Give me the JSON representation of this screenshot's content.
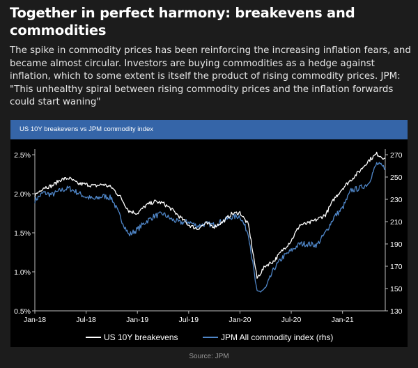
{
  "headline": "Together in perfect harmony: breakevens and commodities",
  "intro": "The spike in commodity prices has been reinforcing the increasing inflation fears, and became almost circular. Investors are buying commodities as a hedge against inflation, which to some extent is itself the product of rising commodity prices. JPM: \"This unhealthy spiral between rising commodity prices and the inflation forwards could start waning\"",
  "source": "Source: JPM",
  "colors": {
    "background": "#1c1c1c",
    "plot_background": "#000000",
    "header_bar": "#3565a8",
    "breakevens_line": "#ffffff",
    "commodity_line": "#4f86c8"
  },
  "chart_data": {
    "type": "line",
    "title": "US 10Y breakevens vs JPM commodity index",
    "x_ticks": [
      "Jan-18",
      "Jul-18",
      "Jan-19",
      "Jul-19",
      "Jan-20",
      "Jul-20",
      "Jan-21"
    ],
    "y_left": {
      "ticks": [
        "0.5%",
        "1.0%",
        "1.5%",
        "2.0%",
        "2.5%"
      ],
      "range": [
        0.5,
        2.5
      ]
    },
    "y_right": {
      "ticks": [
        "130",
        "150",
        "170",
        "190",
        "210",
        "230",
        "250",
        "270"
      ],
      "range": [
        130,
        270
      ]
    },
    "grid": false,
    "legend": "bottom",
    "x_range": [
      "2018-01",
      "2021-06"
    ],
    "series": [
      {
        "name": "US 10Y breakevens",
        "axis": "left",
        "color": "#ffffff",
        "x": [
          "2018-01",
          "2018-02",
          "2018-03",
          "2018-04",
          "2018-05",
          "2018-06",
          "2018-07",
          "2018-08",
          "2018-09",
          "2018-10",
          "2018-11",
          "2018-12",
          "2019-01",
          "2019-02",
          "2019-03",
          "2019-04",
          "2019-05",
          "2019-06",
          "2019-07",
          "2019-08",
          "2019-09",
          "2019-10",
          "2019-11",
          "2019-12",
          "2020-01",
          "2020-02",
          "2020-03",
          "2020-04",
          "2020-05",
          "2020-06",
          "2020-07",
          "2020-08",
          "2020-09",
          "2020-10",
          "2020-11",
          "2020-12",
          "2021-01",
          "2021-02",
          "2021-03",
          "2021-04",
          "2021-05",
          "2021-06"
        ],
        "values": [
          1.98,
          2.08,
          2.1,
          2.18,
          2.2,
          2.13,
          2.12,
          2.1,
          2.12,
          2.08,
          1.96,
          1.78,
          1.75,
          1.85,
          1.9,
          1.88,
          1.8,
          1.7,
          1.6,
          1.55,
          1.62,
          1.58,
          1.64,
          1.74,
          1.76,
          1.6,
          0.92,
          1.08,
          1.14,
          1.28,
          1.4,
          1.6,
          1.62,
          1.67,
          1.73,
          1.93,
          2.07,
          2.18,
          2.29,
          2.42,
          2.51,
          2.45
        ]
      },
      {
        "name": "JPM All commodity index (rhs)",
        "axis": "right",
        "color": "#4f86c8",
        "x": [
          "2018-01",
          "2018-02",
          "2018-03",
          "2018-04",
          "2018-05",
          "2018-06",
          "2018-07",
          "2018-08",
          "2018-09",
          "2018-10",
          "2018-11",
          "2018-12",
          "2019-01",
          "2019-02",
          "2019-03",
          "2019-04",
          "2019-05",
          "2019-06",
          "2019-07",
          "2019-08",
          "2019-09",
          "2019-10",
          "2019-11",
          "2019-12",
          "2020-01",
          "2020-02",
          "2020-03",
          "2020-04",
          "2020-05",
          "2020-06",
          "2020-07",
          "2020-08",
          "2020-09",
          "2020-10",
          "2020-11",
          "2020-12",
          "2021-01",
          "2021-02",
          "2021-03",
          "2021-04",
          "2021-05",
          "2021-06"
        ],
        "values": [
          229,
          236,
          234,
          238,
          240,
          236,
          232,
          230,
          233,
          231,
          214,
          198,
          203,
          210,
          215,
          217,
          212,
          209,
          210,
          206,
          208,
          207,
          211,
          214,
          215,
          199,
          146,
          150,
          168,
          178,
          184,
          190,
          190,
          189,
          200,
          214,
          222,
          238,
          240,
          244,
          262,
          258
        ]
      }
    ]
  }
}
